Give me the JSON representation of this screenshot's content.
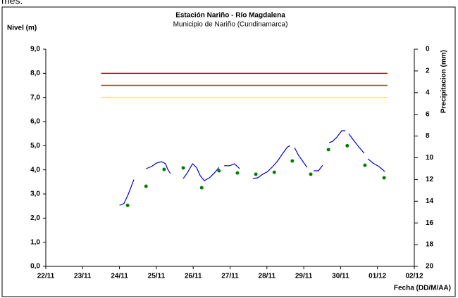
{
  "chart_data": {
    "type": "line",
    "top_text": "mes.",
    "title": "Estación Nariño  - Río Magdalena",
    "subtitle": "Municipio de Nariño (Cundinamarca)",
    "y_label": "Nivel (m)",
    "y2_label": "Precipitacion (mm)",
    "x_label": "Fecha (DD/M/AA)",
    "xlim": [
      22,
      32
    ],
    "xticks": [
      {
        "value": 22,
        "label": "22/11"
      },
      {
        "value": 23,
        "label": "23/11"
      },
      {
        "value": 24,
        "label": "24/11"
      },
      {
        "value": 25,
        "label": "25/11"
      },
      {
        "value": 26,
        "label": "26/11"
      },
      {
        "value": 27,
        "label": "27/11"
      },
      {
        "value": 28,
        "label": "28/11"
      },
      {
        "value": 29,
        "label": "29/11"
      },
      {
        "value": 30,
        "label": "30/11"
      },
      {
        "value": 31,
        "label": "01/12"
      },
      {
        "value": 32,
        "label": "02/12"
      }
    ],
    "ylim": [
      0,
      9
    ],
    "yticks": [
      {
        "value": 0,
        "label": "0,0"
      },
      {
        "value": 1,
        "label": "1,0"
      },
      {
        "value": 2,
        "label": "2,0"
      },
      {
        "value": 3,
        "label": "3,0"
      },
      {
        "value": 4,
        "label": "4,0"
      },
      {
        "value": 5,
        "label": "5,0"
      },
      {
        "value": 6,
        "label": "6,0"
      },
      {
        "value": 7,
        "label": "7,0"
      },
      {
        "value": 8,
        "label": "8,0"
      },
      {
        "value": 9,
        "label": "9,0"
      }
    ],
    "y2lim": [
      0,
      20
    ],
    "y2_inverted": true,
    "y2ticks": [
      0,
      2,
      4,
      6,
      8,
      10,
      12,
      14,
      16,
      18,
      20
    ],
    "reference_lines": [
      {
        "value": 8,
        "color": "#e00000",
        "start": 23.5,
        "end": 31.27
      },
      {
        "value": 7.5,
        "color": "#8b5a2b",
        "start": 23.5,
        "end": 31.27
      },
      {
        "value": 7,
        "color": "#ffff00",
        "start": 23.5,
        "end": 31.27
      }
    ],
    "series": [
      {
        "color": "#0000cc",
        "style": "line",
        "x": [
          24.0,
          24.12,
          24.24,
          24.39,
          null,
          24.72,
          24.87,
          25.0,
          25.14,
          25.25,
          25.3,
          25.38,
          null,
          25.73,
          25.84,
          25.98,
          26.09,
          26.19,
          26.3,
          26.44,
          26.59,
          26.7,
          null,
          26.84,
          26.99,
          27.12,
          27.26,
          null,
          27.62,
          27.75,
          27.89,
          28.02,
          28.16,
          28.29,
          28.42,
          28.56,
          28.63,
          null,
          28.75,
          28.86,
          28.98,
          29.09,
          null,
          29.27,
          29.4,
          29.51,
          null,
          29.69,
          29.78,
          29.9,
          30.03,
          30.13,
          null,
          30.22,
          30.36,
          30.51,
          30.64,
          null,
          30.74,
          30.88,
          31.04,
          31.2
        ],
        "values": [
          2.53,
          2.6,
          3.0,
          3.6,
          null,
          4.05,
          4.14,
          4.28,
          4.34,
          4.25,
          4.05,
          3.85,
          null,
          3.64,
          3.87,
          4.25,
          4.1,
          3.76,
          3.55,
          3.67,
          3.9,
          4.1,
          null,
          4.17,
          4.17,
          4.25,
          4.05,
          null,
          3.64,
          3.67,
          3.82,
          3.93,
          4.14,
          4.37,
          4.66,
          4.95,
          5.0,
          null,
          4.92,
          4.6,
          4.34,
          4.1,
          null,
          3.96,
          3.96,
          4.19,
          null,
          5.13,
          5.18,
          5.36,
          5.62,
          5.62,
          null,
          5.5,
          5.21,
          4.92,
          4.69,
          null,
          4.46,
          4.28,
          4.14,
          3.93
        ]
      },
      {
        "color": "#008000",
        "style": "points",
        "x": [
          24.22,
          24.72,
          25.21,
          25.73,
          26.23,
          26.7,
          27.2,
          27.7,
          28.2,
          28.69,
          29.19,
          29.67,
          30.18,
          30.66,
          31.18
        ],
        "values": [
          2.53,
          3.32,
          4.02,
          4.08,
          3.26,
          3.96,
          3.87,
          3.82,
          3.9,
          4.37,
          3.82,
          4.84,
          5.0,
          4.19,
          3.67
        ]
      }
    ]
  }
}
